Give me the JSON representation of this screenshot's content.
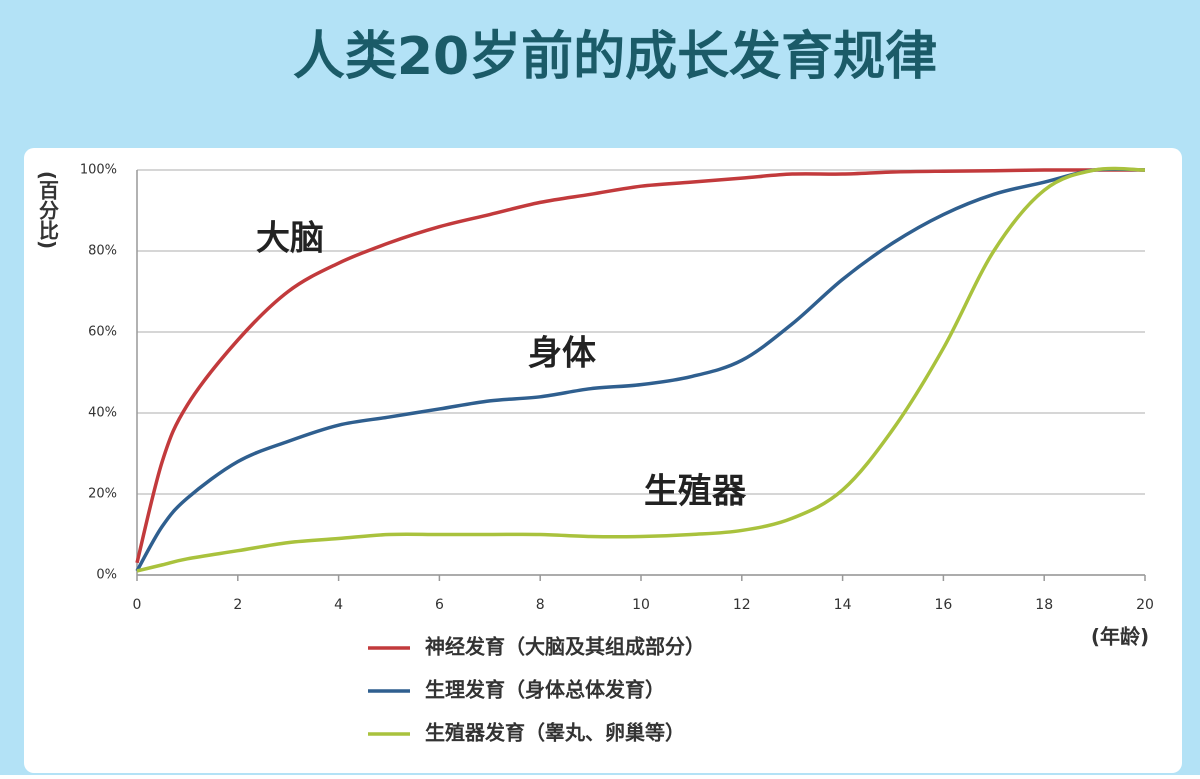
{
  "chart_data": {
    "type": "line",
    "title": "人类20岁前的成长发育规律",
    "y_label": "(百分比)",
    "x_label": "(年龄)",
    "annotations": [
      "大脑",
      "身体",
      "生殖器"
    ],
    "x": [
      0,
      0.5,
      1,
      2,
      3,
      4,
      5,
      6,
      7,
      8,
      9,
      10,
      11,
      12,
      13,
      14,
      15,
      16,
      17,
      18,
      19,
      20
    ],
    "series": [
      {
        "name": "神经发育（大脑及其组成部分）",
        "color": "#c23a3c",
        "values": [
          3,
          28,
          42,
          58,
          70,
          77,
          82,
          86,
          89,
          92,
          94,
          96,
          97,
          98,
          99,
          99,
          99.5,
          99.7,
          99.8,
          100,
          100,
          100
        ]
      },
      {
        "name": "生理发育（身体总体发育）",
        "color": "#2f5f8f",
        "values": [
          1,
          12,
          19,
          28,
          33,
          37,
          39,
          41,
          43,
          44,
          46,
          47,
          49,
          53,
          62,
          73,
          82,
          89,
          94,
          97,
          100,
          100
        ]
      },
      {
        "name": "生殖器发育（睾丸、卵巢等）",
        "color": "#a9c23d",
        "values": [
          1,
          2.5,
          4,
          6,
          8,
          9,
          10,
          10,
          10,
          10,
          9.5,
          9.5,
          10,
          11,
          14,
          21,
          36,
          56,
          80,
          95,
          100,
          100
        ]
      }
    ],
    "xlim": [
      0,
      20
    ],
    "ylim": [
      0,
      100
    ],
    "xticks": [
      0,
      2,
      4,
      6,
      8,
      10,
      12,
      14,
      16,
      18,
      20
    ],
    "yticks": [
      {
        "value": 0,
        "label": "0%"
      },
      {
        "value": 20,
        "label": "20%"
      },
      {
        "value": 40,
        "label": "40%"
      },
      {
        "value": 60,
        "label": "60%"
      },
      {
        "value": 80,
        "label": "80%"
      },
      {
        "value": 100,
        "label": "100%"
      }
    ],
    "grid": true
  }
}
